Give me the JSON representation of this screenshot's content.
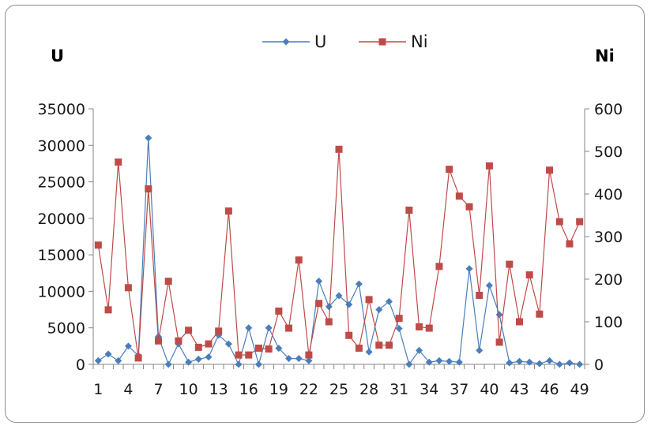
{
  "chart_data": {
    "type": "line",
    "title": "",
    "y_left_label": "U",
    "y_right_label": "Ni",
    "x": [
      1,
      2,
      3,
      4,
      5,
      6,
      7,
      8,
      9,
      10,
      11,
      12,
      13,
      14,
      15,
      16,
      17,
      18,
      19,
      20,
      21,
      22,
      23,
      24,
      25,
      26,
      27,
      28,
      29,
      30,
      31,
      32,
      33,
      34,
      35,
      36,
      37,
      38,
      39,
      40,
      41,
      42,
      43,
      44,
      45,
      46,
      47,
      48,
      49
    ],
    "x_tick_labels": [
      "1",
      "4",
      "7",
      "10",
      "13",
      "16",
      "19",
      "22",
      "25",
      "28",
      "31",
      "34",
      "37",
      "40",
      "43",
      "46",
      "49"
    ],
    "y_left_lim": [
      0,
      35000
    ],
    "y_left_ticks": [
      "0",
      "5000",
      "10000",
      "15000",
      "20000",
      "25000",
      "30000",
      "35000"
    ],
    "y_right_lim": [
      0,
      600
    ],
    "y_right_ticks": [
      "0",
      "100",
      "200",
      "300",
      "400",
      "500",
      "600"
    ],
    "grid": false,
    "legend_position": "top-center",
    "series": [
      {
        "name": "U",
        "axis": "left",
        "color": "#4a7ebb",
        "marker": "diamond",
        "values": [
          500,
          1400,
          500,
          2500,
          1200,
          31000,
          3800,
          0,
          2800,
          300,
          700,
          1000,
          4000,
          2800,
          0,
          5000,
          0,
          5000,
          2200,
          800,
          800,
          500,
          11400,
          7900,
          9400,
          8200,
          11000,
          1700,
          7500,
          8600,
          4900,
          0,
          1900,
          300,
          500,
          400,
          300,
          13100,
          1900,
          10800,
          6800,
          200,
          400,
          300,
          100,
          500,
          0,
          200,
          0
        ]
      },
      {
        "name": "Ni",
        "axis": "right",
        "color": "#be4b48",
        "marker": "square",
        "values": [
          280,
          128,
          475,
          180,
          15,
          412,
          55,
          195,
          55,
          80,
          40,
          48,
          78,
          360,
          22,
          22,
          38,
          36,
          125,
          85,
          245,
          22,
          143,
          100,
          505,
          68,
          38,
          152,
          45,
          45,
          108,
          362,
          88,
          85,
          230,
          458,
          395,
          370,
          162,
          466,
          52,
          235,
          100,
          210,
          118,
          456,
          335,
          283,
          335
        ]
      }
    ]
  }
}
